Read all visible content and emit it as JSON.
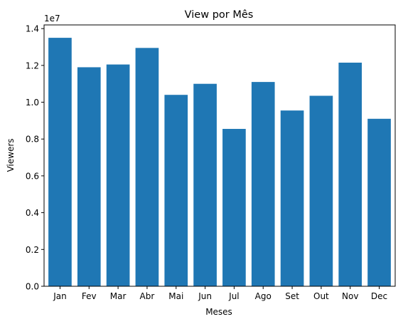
{
  "chart_data": {
    "type": "bar",
    "title": "View por Mês",
    "xlabel": "Meses",
    "ylabel": "Viewers",
    "y_offset_label": "1e7",
    "y_scale": 10000000,
    "categories": [
      "Jan",
      "Fev",
      "Mar",
      "Abr",
      "Mai",
      "Jun",
      "Jul",
      "Ago",
      "Set",
      "Out",
      "Nov",
      "Dec"
    ],
    "values": [
      13500000,
      11900000,
      12050000,
      12950000,
      10400000,
      11000000,
      8550000,
      11100000,
      9550000,
      10350000,
      12150000,
      9100000
    ],
    "ylim": [
      0,
      14200000
    ],
    "y_ticks": [
      0,
      2000000,
      4000000,
      6000000,
      8000000,
      10000000,
      12000000,
      14000000
    ],
    "y_tick_labels": [
      "0.0",
      "0.2",
      "0.4",
      "0.6",
      "0.8",
      "1.0",
      "1.2",
      "1.4"
    ],
    "bar_color": "#1f77b4",
    "grid": false,
    "legend": "none"
  }
}
